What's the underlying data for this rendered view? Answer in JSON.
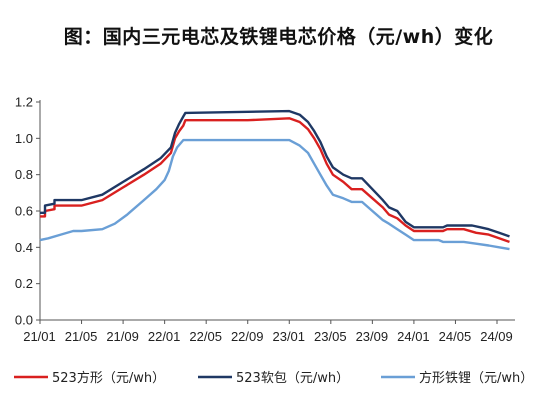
{
  "chart_data": {
    "type": "line",
    "title": "图：国内三元电芯及铁锂电芯价格（元/wh）变化",
    "xlabel": "",
    "ylabel": "",
    "ylim": [
      0,
      1.2
    ],
    "yticks": [
      "0.0",
      "0.2",
      "0.4",
      "0.6",
      "0.8",
      "1.0",
      "1.2"
    ],
    "xtick_labels": [
      "21/01",
      "21/05",
      "21/09",
      "22/01",
      "22/05",
      "22/09",
      "23/01",
      "23/05",
      "23/09",
      "24/01",
      "24/05",
      "24/09"
    ],
    "grid": false,
    "legend_position": "bottom",
    "colors": {
      "523方形": "#d9201f",
      "523软包": "#1f3864",
      "方形铁锂": "#6a9fd6"
    },
    "series": [
      {
        "name": "523方形（元/wh）",
        "points": [
          [
            0,
            0.57
          ],
          [
            0.12,
            0.57
          ],
          [
            0.12,
            0.6
          ],
          [
            0.35,
            0.61
          ],
          [
            0.35,
            0.63
          ],
          [
            1.0,
            0.63
          ],
          [
            1.5,
            0.66
          ],
          [
            2.0,
            0.73
          ],
          [
            2.5,
            0.8
          ],
          [
            2.9,
            0.86
          ],
          [
            3.15,
            0.92
          ],
          [
            3.25,
            1.0
          ],
          [
            3.35,
            1.04
          ],
          [
            3.45,
            1.07
          ],
          [
            3.5,
            1.1
          ],
          [
            5.0,
            1.1
          ],
          [
            6.0,
            1.11
          ],
          [
            6.25,
            1.09
          ],
          [
            6.45,
            1.05
          ],
          [
            6.6,
            1.0
          ],
          [
            6.75,
            0.94
          ],
          [
            6.9,
            0.86
          ],
          [
            7.05,
            0.8
          ],
          [
            7.3,
            0.76
          ],
          [
            7.5,
            0.72
          ],
          [
            7.75,
            0.72
          ],
          [
            8.0,
            0.67
          ],
          [
            8.25,
            0.62
          ],
          [
            8.4,
            0.58
          ],
          [
            8.6,
            0.56
          ],
          [
            8.8,
            0.52
          ],
          [
            9.0,
            0.49
          ],
          [
            9.5,
            0.49
          ],
          [
            9.7,
            0.49
          ],
          [
            9.8,
            0.5
          ],
          [
            10.2,
            0.5
          ],
          [
            10.5,
            0.48
          ],
          [
            10.8,
            0.47
          ],
          [
            11.05,
            0.45
          ],
          [
            11.3,
            0.43
          ]
        ]
      },
      {
        "name": "523软包（元/wh）",
        "points": [
          [
            0,
            0.59
          ],
          [
            0.12,
            0.59
          ],
          [
            0.12,
            0.63
          ],
          [
            0.35,
            0.64
          ],
          [
            0.35,
            0.66
          ],
          [
            1.0,
            0.66
          ],
          [
            1.5,
            0.69
          ],
          [
            2.0,
            0.76
          ],
          [
            2.5,
            0.83
          ],
          [
            2.9,
            0.89
          ],
          [
            3.15,
            0.95
          ],
          [
            3.25,
            1.03
          ],
          [
            3.35,
            1.08
          ],
          [
            3.45,
            1.12
          ],
          [
            3.5,
            1.14
          ],
          [
            6.0,
            1.15
          ],
          [
            6.25,
            1.13
          ],
          [
            6.45,
            1.09
          ],
          [
            6.6,
            1.04
          ],
          [
            6.75,
            0.98
          ],
          [
            6.9,
            0.9
          ],
          [
            7.05,
            0.84
          ],
          [
            7.3,
            0.8
          ],
          [
            7.5,
            0.78
          ],
          [
            7.75,
            0.78
          ],
          [
            8.0,
            0.72
          ],
          [
            8.25,
            0.66
          ],
          [
            8.4,
            0.62
          ],
          [
            8.6,
            0.6
          ],
          [
            8.8,
            0.54
          ],
          [
            9.0,
            0.51
          ],
          [
            9.6,
            0.51
          ],
          [
            9.7,
            0.51
          ],
          [
            9.8,
            0.52
          ],
          [
            10.4,
            0.52
          ],
          [
            10.6,
            0.51
          ],
          [
            10.8,
            0.5
          ],
          [
            11.05,
            0.48
          ],
          [
            11.3,
            0.46
          ]
        ]
      },
      {
        "name": "方形铁锂（元/wh）",
        "points": [
          [
            0,
            0.44
          ],
          [
            0.2,
            0.45
          ],
          [
            0.5,
            0.47
          ],
          [
            0.8,
            0.49
          ],
          [
            1.0,
            0.49
          ],
          [
            1.5,
            0.5
          ],
          [
            1.8,
            0.53
          ],
          [
            2.1,
            0.58
          ],
          [
            2.5,
            0.66
          ],
          [
            2.8,
            0.72
          ],
          [
            3.0,
            0.77
          ],
          [
            3.1,
            0.82
          ],
          [
            3.2,
            0.9
          ],
          [
            3.3,
            0.95
          ],
          [
            3.45,
            0.99
          ],
          [
            6.0,
            0.99
          ],
          [
            6.25,
            0.96
          ],
          [
            6.45,
            0.92
          ],
          [
            6.6,
            0.86
          ],
          [
            6.75,
            0.8
          ],
          [
            6.9,
            0.74
          ],
          [
            7.05,
            0.69
          ],
          [
            7.3,
            0.67
          ],
          [
            7.5,
            0.65
          ],
          [
            7.75,
            0.65
          ],
          [
            8.0,
            0.6
          ],
          [
            8.25,
            0.55
          ],
          [
            8.4,
            0.53
          ],
          [
            8.6,
            0.5
          ],
          [
            8.8,
            0.47
          ],
          [
            9.0,
            0.44
          ],
          [
            9.6,
            0.44
          ],
          [
            9.7,
            0.43
          ],
          [
            10.2,
            0.43
          ],
          [
            10.5,
            0.42
          ],
          [
            10.8,
            0.41
          ],
          [
            11.05,
            0.4
          ],
          [
            11.3,
            0.39
          ]
        ]
      }
    ]
  }
}
